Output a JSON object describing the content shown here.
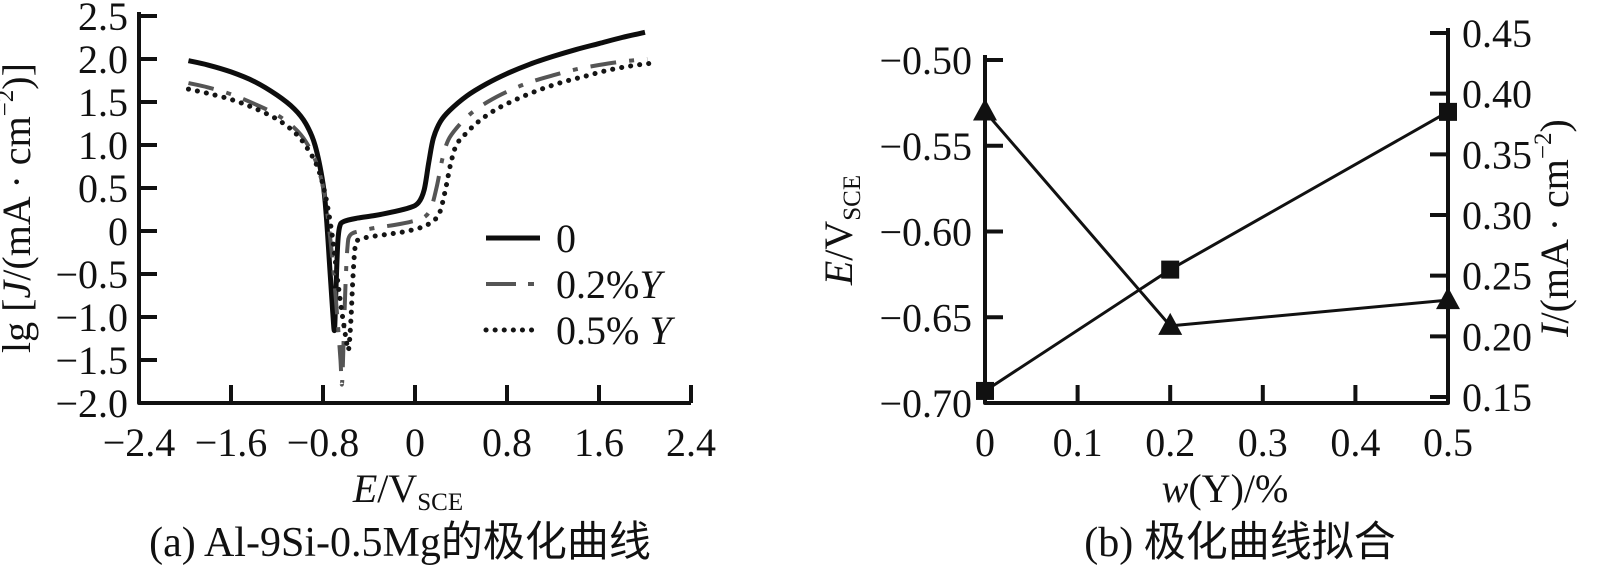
{
  "figure": {
    "caption_a": "(a) Al-9Si-0.5Mg的极化曲线",
    "caption_b": "(b) 极化曲线拟合"
  },
  "chart_data": [
    {
      "id": "a",
      "type": "line",
      "title": "(a) Al-9Si-0.5Mg的极化曲线",
      "xlabel": "E/V_SCE",
      "xlabel_parts": [
        {
          "t": "E",
          "i": 1
        },
        {
          "t": "/V"
        },
        {
          "t": "SCE",
          "sub": 1
        }
      ],
      "ylabel": "lg [J/(mA · cm^-2)]",
      "ylabel_parts": [
        {
          "t": "lg ["
        },
        {
          "t": "J",
          "i": 1
        },
        {
          "t": "/(mA · cm"
        },
        {
          "t": "−2",
          "sup": 1
        },
        {
          "t": ")]"
        }
      ],
      "xlim": [
        -2.4,
        2.4
      ],
      "ylim": [
        -2.0,
        2.5
      ],
      "grid": false,
      "legend_position": "inside-right",
      "xticks": [
        {
          "v": -2.4,
          "label": "−2.4"
        },
        {
          "v": -1.6,
          "label": "−1.6"
        },
        {
          "v": -0.8,
          "label": "−0.8"
        },
        {
          "v": 0,
          "label": "0"
        },
        {
          "v": 0.8,
          "label": "0.8"
        },
        {
          "v": 1.6,
          "label": "1.6"
        },
        {
          "v": 2.4,
          "label": "2.4"
        }
      ],
      "yticks": [
        {
          "v": 2.5,
          "label": "2.5"
        },
        {
          "v": 2.0,
          "label": "2.0"
        },
        {
          "v": 1.5,
          "label": "1.5"
        },
        {
          "v": 1.0,
          "label": "1.0"
        },
        {
          "v": 0.5,
          "label": "0.5"
        },
        {
          "v": 0,
          "label": "0"
        },
        {
          "v": -0.5,
          "label": "−0.5"
        },
        {
          "v": -1.0,
          "label": "−1.0"
        },
        {
          "v": -1.5,
          "label": "−1.5"
        },
        {
          "v": -2.0,
          "label": "−2.0"
        }
      ],
      "series": [
        {
          "name": "0",
          "name_parts": [
            {
              "t": "0"
            }
          ],
          "style": "solid",
          "color": "#0d0d0d",
          "width": 5,
          "points": [
            [
              -1.97,
              1.98
            ],
            [
              -1.8,
              1.93
            ],
            [
              -1.6,
              1.85
            ],
            [
              -1.4,
              1.74
            ],
            [
              -1.2,
              1.58
            ],
            [
              -1.05,
              1.42
            ],
            [
              -0.95,
              1.25
            ],
            [
              -0.87,
              1.0
            ],
            [
              -0.8,
              0.55
            ],
            [
              -0.77,
              0.15
            ],
            [
              -0.74,
              -0.45
            ],
            [
              -0.715,
              -0.95
            ],
            [
              -0.7,
              -1.15
            ],
            [
              -0.688,
              -0.7
            ],
            [
              -0.672,
              -0.15
            ],
            [
              -0.655,
              0.05
            ],
            [
              -0.62,
              0.11
            ],
            [
              -0.5,
              0.15
            ],
            [
              -0.35,
              0.18
            ],
            [
              -0.2,
              0.22
            ],
            [
              -0.05,
              0.27
            ],
            [
              0.03,
              0.33
            ],
            [
              0.08,
              0.48
            ],
            [
              0.12,
              0.8
            ],
            [
              0.16,
              1.08
            ],
            [
              0.22,
              1.27
            ],
            [
              0.3,
              1.4
            ],
            [
              0.45,
              1.57
            ],
            [
              0.62,
              1.71
            ],
            [
              0.8,
              1.83
            ],
            [
              1.0,
              1.94
            ],
            [
              1.2,
              2.03
            ],
            [
              1.4,
              2.11
            ],
            [
              1.6,
              2.18
            ],
            [
              1.8,
              2.25
            ],
            [
              2.0,
              2.31
            ]
          ]
        },
        {
          "name": "0.2%Y",
          "name_parts": [
            {
              "t": "0.2%"
            },
            {
              "t": "Y",
              "i": 1
            }
          ],
          "style": "dashdot",
          "color": "#555555",
          "width": 4,
          "points": [
            [
              -1.97,
              1.72
            ],
            [
              -1.8,
              1.67
            ],
            [
              -1.6,
              1.59
            ],
            [
              -1.4,
              1.48
            ],
            [
              -1.2,
              1.35
            ],
            [
              -1.05,
              1.2
            ],
            [
              -0.95,
              1.04
            ],
            [
              -0.86,
              0.8
            ],
            [
              -0.79,
              0.45
            ],
            [
              -0.74,
              -0.05
            ],
            [
              -0.7,
              -0.6
            ],
            [
              -0.67,
              -1.1
            ],
            [
              -0.648,
              -1.5
            ],
            [
              -0.635,
              -1.78
            ],
            [
              -0.62,
              -1.25
            ],
            [
              -0.605,
              -0.65
            ],
            [
              -0.588,
              -0.2
            ],
            [
              -0.565,
              -0.05
            ],
            [
              -0.48,
              0.0
            ],
            [
              -0.33,
              0.04
            ],
            [
              -0.18,
              0.07
            ],
            [
              -0.03,
              0.11
            ],
            [
              0.08,
              0.16
            ],
            [
              0.14,
              0.27
            ],
            [
              0.19,
              0.52
            ],
            [
              0.24,
              0.85
            ],
            [
              0.29,
              1.06
            ],
            [
              0.37,
              1.21
            ],
            [
              0.48,
              1.36
            ],
            [
              0.63,
              1.5
            ],
            [
              0.8,
              1.62
            ],
            [
              1.0,
              1.73
            ],
            [
              1.2,
              1.81
            ],
            [
              1.4,
              1.88
            ],
            [
              1.6,
              1.93
            ],
            [
              1.8,
              1.97
            ],
            [
              2.02,
              2.0
            ]
          ]
        },
        {
          "name": "0.5% Y",
          "name_parts": [
            {
              "t": "0.5% "
            },
            {
              "t": "Y",
              "i": 1
            }
          ],
          "style": "dotted",
          "color": "#141414",
          "width": 5,
          "points": [
            [
              -1.97,
              1.65
            ],
            [
              -1.8,
              1.6
            ],
            [
              -1.6,
              1.53
            ],
            [
              -1.4,
              1.43
            ],
            [
              -1.2,
              1.3
            ],
            [
              -1.05,
              1.15
            ],
            [
              -0.95,
              0.99
            ],
            [
              -0.85,
              0.75
            ],
            [
              -0.78,
              0.42
            ],
            [
              -0.72,
              -0.05
            ],
            [
              -0.675,
              -0.55
            ],
            [
              -0.635,
              -0.95
            ],
            [
              -0.6,
              -1.25
            ],
            [
              -0.578,
              -1.38
            ],
            [
              -0.558,
              -1.05
            ],
            [
              -0.54,
              -0.55
            ],
            [
              -0.52,
              -0.18
            ],
            [
              -0.49,
              -0.1
            ],
            [
              -0.4,
              -0.07
            ],
            [
              -0.25,
              -0.04
            ],
            [
              -0.1,
              -0.01
            ],
            [
              0.05,
              0.04
            ],
            [
              0.14,
              0.1
            ],
            [
              0.21,
              0.2
            ],
            [
              0.26,
              0.45
            ],
            [
              0.31,
              0.78
            ],
            [
              0.36,
              1.0
            ],
            [
              0.44,
              1.13
            ],
            [
              0.55,
              1.27
            ],
            [
              0.7,
              1.41
            ],
            [
              0.88,
              1.53
            ],
            [
              1.08,
              1.64
            ],
            [
              1.28,
              1.73
            ],
            [
              1.48,
              1.8
            ],
            [
              1.68,
              1.87
            ],
            [
              1.88,
              1.92
            ],
            [
              2.05,
              1.95
            ]
          ]
        }
      ]
    },
    {
      "id": "b",
      "type": "line",
      "title": "(b) 极化曲线拟合",
      "xlabel": "w(Y)/%",
      "xlabel_parts": [
        {
          "t": "w",
          "i": 1
        },
        {
          "t": "(Y)/%"
        }
      ],
      "x": [
        0,
        0.2,
        0.5
      ],
      "xlim": [
        0,
        0.5
      ],
      "grid": false,
      "xticks": [
        {
          "v": 0,
          "label": "0"
        },
        {
          "v": 0.1,
          "label": "0.1"
        },
        {
          "v": 0.2,
          "label": "0.2"
        },
        {
          "v": 0.3,
          "label": "0.3"
        },
        {
          "v": 0.4,
          "label": "0.4"
        },
        {
          "v": 0.5,
          "label": "0.5"
        }
      ],
      "axes": {
        "left": {
          "label": "E/V_SCE",
          "label_parts": [
            {
              "t": "E",
              "i": 1
            },
            {
              "t": "/V"
            },
            {
              "t": "SCE",
              "sub": 1
            }
          ],
          "lim": [
            -0.7,
            -0.5
          ],
          "ticks": [
            {
              "v": -0.5,
              "label": "−0.50"
            },
            {
              "v": -0.55,
              "label": "−0.55"
            },
            {
              "v": -0.6,
              "label": "−0.60"
            },
            {
              "v": -0.65,
              "label": "−0.65"
            },
            {
              "v": -0.7,
              "label": "−0.70"
            }
          ]
        },
        "right": {
          "label": "I/(mA · cm^-2)",
          "label_parts": [
            {
              "t": "I",
              "i": 1
            },
            {
              "t": "/(mA · cm"
            },
            {
              "t": "−2",
              "sup": 1
            },
            {
              "t": ")"
            }
          ],
          "lim": [
            0.15,
            0.45
          ],
          "ticks": [
            {
              "v": 0.45,
              "label": "0.45"
            },
            {
              "v": 0.4,
              "label": "0.40"
            },
            {
              "v": 0.35,
              "label": "0.35"
            },
            {
              "v": 0.3,
              "label": "0.30"
            },
            {
              "v": 0.25,
              "label": "0.25"
            },
            {
              "v": 0.2,
              "label": "0.20"
            },
            {
              "v": 0.15,
              "label": "0.15"
            }
          ]
        }
      },
      "series": [
        {
          "axis": "left",
          "marker": "triangle",
          "color": "#111111",
          "values": [
            -0.53,
            -0.655,
            -0.64
          ]
        },
        {
          "axis": "right",
          "marker": "square",
          "color": "#111111",
          "values": [
            0.155,
            0.255,
            0.385
          ]
        }
      ]
    }
  ]
}
